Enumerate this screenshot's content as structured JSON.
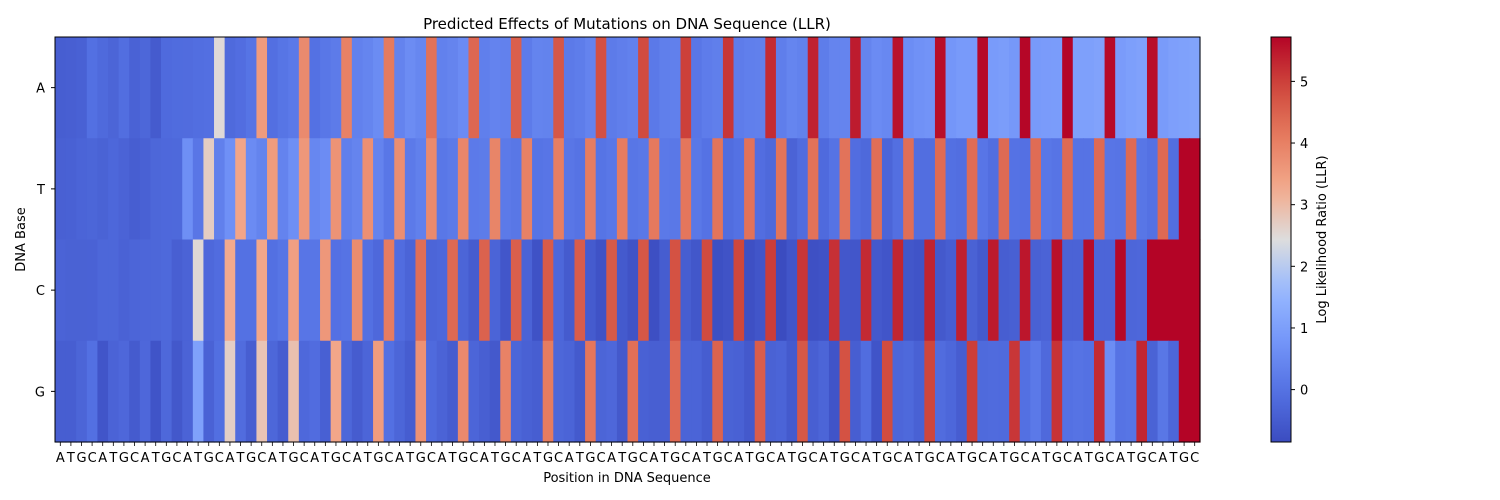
{
  "chart_data": {
    "type": "heatmap",
    "title": "Predicted Effects of Mutations on DNA Sequence (LLR)",
    "xlabel": "Position in DNA Sequence",
    "ylabel": "DNA Base",
    "colorbar_label": "Log Likelihood Ratio (LLR)",
    "colormap": "coolwarm",
    "vmin": -0.85,
    "vmax": 5.72,
    "colorbar_ticks": [
      0,
      1,
      2,
      3,
      4,
      5
    ],
    "colorbar_tick_labels": [
      "0",
      "1",
      "2",
      "3",
      "4",
      "5"
    ],
    "rows": [
      "A",
      "T",
      "C",
      "G"
    ],
    "sequence": "ATGCATGCATGCATGCATGCATGCATGCATGCATGCATGCATGCATGCATGCATGCATGCATGCATGCATGCATGCATGCATGCATGCATGCATGCATGCATGCATGC",
    "notes": "Cell values estimated from colors. Wild-type base at each position has low LLR; one alternative base per position shows an elevated LLR that grows roughly linearly along the sequence.",
    "values": {
      "A": [
        -0.46,
        -0.42,
        -0.39,
        -0.05,
        -0.19,
        -0.3,
        -0.09,
        -0.36,
        -0.26,
        -0.51,
        -0.18,
        -0.15,
        -0.14,
        -0.09,
        -0.07,
        2.5,
        -0.19,
        -0.11,
        0.03,
        3.53,
        -0.07,
        0.06,
        0.14,
        3.82,
        -0.03,
        0.11,
        0.19,
        3.98,
        0.33,
        0.42,
        0.56,
        4.1,
        0.38,
        0.58,
        0.46,
        4.24,
        0.33,
        0.4,
        0.55,
        4.41,
        0.29,
        0.37,
        0.33,
        4.54,
        0.2,
        0.39,
        0.36,
        4.67,
        0.17,
        0.23,
        0.38,
        4.79,
        0.2,
        0.27,
        0.33,
        4.86,
        0.14,
        0.28,
        0.3,
        5.01,
        0.09,
        0.22,
        0.28,
        5.12,
        0.22,
        0.29,
        0.3,
        5.25,
        0.26,
        0.42,
        0.34,
        5.37,
        0.23,
        0.4,
        0.4,
        5.45,
        0.4,
        0.55,
        0.49,
        5.55,
        0.6,
        0.69,
        0.73,
        5.6,
        0.8,
        0.88,
        0.88,
        5.66,
        0.9,
        0.95,
        0.84,
        5.7,
        0.89,
        0.92,
        0.94,
        5.72,
        1.03,
        1.03,
        1.08,
        5.64,
        0.92,
        1.0,
        1.06,
        5.6,
        0.9,
        1.01,
        1.05,
        1.1
      ],
      "T": [
        -0.4,
        -0.38,
        -0.31,
        -0.28,
        -0.35,
        -0.25,
        -0.34,
        -0.46,
        -0.38,
        -0.26,
        -0.22,
        -0.21,
        0.63,
        0.09,
        2.71,
        0.31,
        0.67,
        3.34,
        0.55,
        0.39,
        3.51,
        0.38,
        0.63,
        3.6,
        0.45,
        0.58,
        3.66,
        0.28,
        0.4,
        3.73,
        0.37,
        0.11,
        3.75,
        0.18,
        0.3,
        3.83,
        0.11,
        0.17,
        3.9,
        0.18,
        0.21,
        3.92,
        0.17,
        0.1,
        3.98,
        0.03,
        0.07,
        4.04,
        0.09,
        0.02,
        4.06,
        0.03,
        0.11,
        4.08,
        0.08,
        0.13,
        4.13,
        0.15,
        0.12,
        4.17,
        0.12,
        -0.01,
        4.2,
        -0.12,
        -0.02,
        4.24,
        -0.11,
        -0.21,
        4.21,
        -0.33,
        -0.14,
        4.24,
        -0.18,
        0.01,
        4.23,
        -0.11,
        -0.21,
        4.31,
        -0.29,
        -0.07,
        4.3,
        -0.1,
        -0.09,
        4.35,
        -0.05,
        -0.1,
        4.34,
        0.07,
        -0.09,
        4.37,
        0.0,
        -0.04,
        4.34,
        0.11,
        0.04,
        4.37,
        0.01,
        0.01,
        4.37,
        0.07,
        0.04,
        4.36,
        0.08,
        -0.03,
        4.39,
        -0.1
      ],
      "C": [
        -0.34,
        -0.37,
        -0.37,
        -0.36,
        -0.26,
        -0.26,
        -0.36,
        -0.29,
        -0.27,
        -0.26,
        -0.21,
        -0.43,
        -0.34,
        2.52,
        -0.22,
        -0.13,
        3.25,
        -0.03,
        -0.02,
        3.31,
        -0.05,
        0.05,
        3.45,
        0.07,
        0.08,
        3.6,
        -0.04,
        0.02,
        3.8,
        -0.05,
        -0.22,
        4.08,
        -0.13,
        -0.32,
        4.3,
        -0.29,
        -0.25,
        4.38,
        -0.3,
        -0.49,
        4.49,
        -0.31,
        -0.62,
        4.55,
        -0.34,
        -0.71,
        4.61,
        -0.25,
        -0.52,
        4.6,
        -0.51,
        -0.71,
        4.63,
        -0.54,
        -0.7,
        4.68,
        -0.79,
        -0.48,
        4.75,
        -0.44,
        -0.61,
        4.86,
        -0.77,
        -0.7,
        4.92,
        -0.76,
        -0.65,
        5.04,
        -0.85,
        -0.65,
        5.13,
        -0.76,
        -0.72,
        5.2,
        -0.6,
        -0.62,
        5.27,
        -0.57,
        -0.64,
        5.31,
        -0.61,
        -0.67,
        5.34,
        -0.57,
        -0.46,
        5.39,
        -0.37,
        -0.54,
        5.46,
        -0.46,
        -0.41,
        5.5,
        -0.38,
        -0.34,
        5.57,
        -0.34,
        -0.33,
        5.62,
        -0.29,
        -0.29,
        5.67,
        -0.27,
        -0.24,
        5.72
      ],
      "G": [
        -0.46,
        -0.45,
        -0.3,
        -0.05,
        -0.65,
        -0.33,
        -0.24,
        -0.52,
        -0.24,
        -0.67,
        -0.23,
        -0.59,
        -0.33,
        1.05,
        -0.36,
        -0.08,
        2.68,
        -0.14,
        -0.46,
        2.84,
        -0.26,
        -0.48,
        2.9,
        -0.22,
        -0.13,
        -0.41,
        3.32,
        -0.26,
        -0.5,
        -0.29,
        3.51,
        -0.06,
        -0.28,
        -0.48,
        3.71,
        -0.18,
        -0.33,
        -0.5,
        3.84,
        -0.29,
        -0.43,
        -0.57,
        3.97,
        -0.28,
        -0.39,
        -0.46,
        4.08,
        -0.26,
        -0.31,
        -0.54,
        4.17,
        -0.3,
        -0.24,
        -0.56,
        4.28,
        -0.39,
        -0.42,
        -0.42,
        4.38,
        -0.31,
        -0.31,
        -0.48,
        4.48,
        -0.35,
        -0.39,
        -0.56,
        4.57,
        -0.37,
        -0.32,
        -0.54,
        4.66,
        -0.42,
        -0.3,
        -0.67,
        4.75,
        -0.44,
        -0.12,
        -0.67,
        4.85,
        -0.27,
        -0.21,
        -0.39,
        4.93,
        -0.14,
        -0.25,
        -0.47,
        5.03,
        -0.19,
        -0.16,
        -0.18,
        5.12,
        -0.05,
        0.15,
        -0.2,
        5.16,
        -0.02,
        0.02,
        -0.03,
        5.25,
        0.59,
        0.01,
        0.05,
        5.31,
        -0.35,
        0.1,
        -0.27
      ]
    }
  }
}
